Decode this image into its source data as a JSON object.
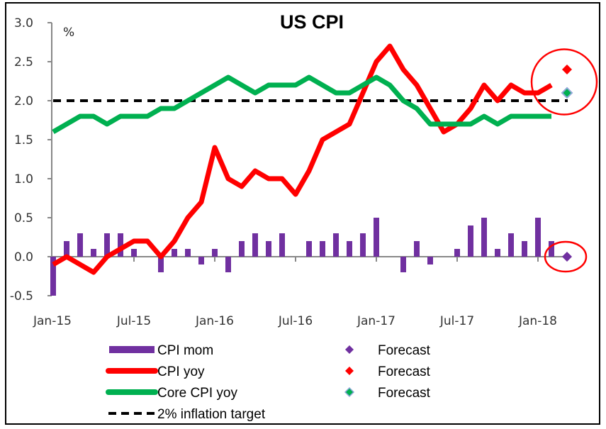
{
  "chart_data": {
    "type": "bar+line",
    "title": "US CPI",
    "ylabel": "%",
    "xlabel": "",
    "ylim": [
      -0.5,
      3.0
    ],
    "yticks": [
      -0.5,
      0.0,
      0.5,
      1.0,
      1.5,
      2.0,
      2.5,
      3.0
    ],
    "ytick_labels": [
      "-0.5",
      "0.0",
      "0.5",
      "1.0",
      "1.5",
      "2.0",
      "2.5",
      "3.0"
    ],
    "xtick_labels": [
      "Jan-15",
      "Jul-15",
      "Jan-16",
      "Jul-16",
      "Jan-17",
      "Jul-17",
      "Jan-18"
    ],
    "xtick_month_index": [
      0,
      6,
      12,
      18,
      24,
      30,
      36
    ],
    "months": [
      "Jan-15",
      "Feb-15",
      "Mar-15",
      "Apr-15",
      "May-15",
      "Jun-15",
      "Jul-15",
      "Aug-15",
      "Sep-15",
      "Oct-15",
      "Nov-15",
      "Dec-15",
      "Jan-16",
      "Feb-16",
      "Mar-16",
      "Apr-16",
      "May-16",
      "Jun-16",
      "Jul-16",
      "Aug-16",
      "Sep-16",
      "Oct-16",
      "Nov-16",
      "Dec-16",
      "Jan-17",
      "Feb-17",
      "Mar-17",
      "Apr-17",
      "May-17",
      "Jun-17",
      "Jul-17",
      "Aug-17",
      "Sep-17",
      "Oct-17",
      "Nov-17",
      "Dec-17",
      "Jan-18",
      "Feb-18"
    ],
    "series": [
      {
        "name": "CPI mom",
        "kind": "bar",
        "color": "#7030a0",
        "values": [
          -0.5,
          0.2,
          0.3,
          0.1,
          0.3,
          0.3,
          0.1,
          0.0,
          -0.2,
          0.1,
          0.1,
          -0.1,
          0.1,
          -0.2,
          0.2,
          0.3,
          0.2,
          0.3,
          0.0,
          0.2,
          0.2,
          0.3,
          0.2,
          0.3,
          0.5,
          0.0,
          -0.2,
          0.2,
          -0.1,
          0.0,
          0.1,
          0.4,
          0.5,
          0.1,
          0.3,
          0.2,
          0.5,
          0.2
        ]
      },
      {
        "name": "CPI yoy",
        "kind": "line",
        "color": "#ff0000",
        "values": [
          -0.1,
          0.0,
          -0.1,
          -0.2,
          0.0,
          0.1,
          0.2,
          0.2,
          0.0,
          0.2,
          0.5,
          0.7,
          1.4,
          1.0,
          0.9,
          1.1,
          1.0,
          1.0,
          0.8,
          1.1,
          1.5,
          1.6,
          1.7,
          2.1,
          2.5,
          2.7,
          2.4,
          2.2,
          1.9,
          1.6,
          1.7,
          1.9,
          2.2,
          2.0,
          2.2,
          2.1,
          2.1,
          2.2
        ]
      },
      {
        "name": "Core CPI yoy",
        "kind": "line",
        "color": "#00b050",
        "values": [
          1.6,
          1.7,
          1.8,
          1.8,
          1.7,
          1.8,
          1.8,
          1.8,
          1.9,
          1.9,
          2.0,
          2.1,
          2.2,
          2.3,
          2.2,
          2.1,
          2.2,
          2.2,
          2.2,
          2.3,
          2.2,
          2.1,
          2.1,
          2.2,
          2.3,
          2.2,
          2.0,
          1.9,
          1.7,
          1.7,
          1.7,
          1.7,
          1.8,
          1.7,
          1.8,
          1.8,
          1.8,
          1.8
        ]
      },
      {
        "name": "2% inflation target",
        "kind": "dashed-line",
        "color": "#000000",
        "value": 2.0
      }
    ],
    "forecasts": [
      {
        "name": "Forecast",
        "series": "CPI mom",
        "month": "Mar-18",
        "value": 0.0,
        "color": "#7030a0"
      },
      {
        "name": "Forecast",
        "series": "CPI yoy",
        "month": "Mar-18",
        "value": 2.4,
        "color": "#ff0000"
      },
      {
        "name": "Forecast",
        "series": "Core CPI yoy",
        "month": "Mar-18",
        "value": 2.1,
        "color": "#00b050"
      }
    ],
    "annotations": [
      {
        "type": "circle",
        "color": "#ff0000",
        "encloses": "CPI yoy and Core CPI yoy forecasts (Mar-18)"
      },
      {
        "type": "ellipse",
        "color": "#ff0000",
        "encloses": "CPI mom forecast (Mar-18)"
      }
    ],
    "legend": {
      "placement": "bottom",
      "left_column": [
        {
          "label": "CPI mom",
          "symbol": "bar",
          "color": "#7030a0"
        },
        {
          "label": "CPI yoy",
          "symbol": "line",
          "color": "#ff0000"
        },
        {
          "label": "Core CPI yoy",
          "symbol": "line",
          "color": "#00b050"
        },
        {
          "label": "2% inflation target",
          "symbol": "dashed",
          "color": "#000000"
        }
      ],
      "right_column": [
        {
          "label": "Forecast",
          "symbol": "diamond",
          "color": "#7030a0"
        },
        {
          "label": "Forecast",
          "symbol": "diamond",
          "color": "#ff0000"
        },
        {
          "label": "Forecast",
          "symbol": "diamond",
          "color": "#00b050"
        }
      ]
    },
    "grid": false
  }
}
